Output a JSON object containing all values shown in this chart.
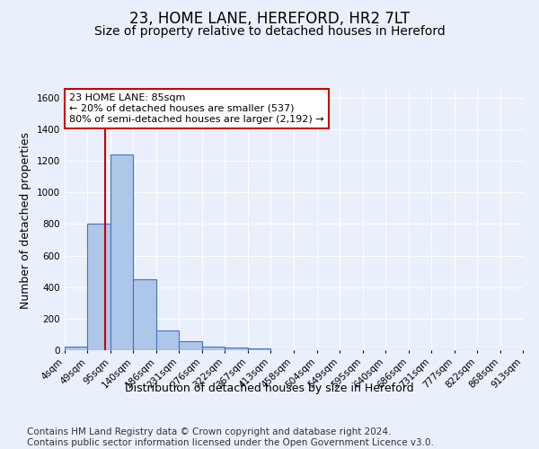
{
  "title_line1": "23, HOME LANE, HEREFORD, HR2 7LT",
  "title_line2": "Size of property relative to detached houses in Hereford",
  "xlabel": "Distribution of detached houses by size in Hereford",
  "ylabel": "Number of detached properties",
  "footer_line1": "Contains HM Land Registry data © Crown copyright and database right 2024.",
  "footer_line2": "Contains public sector information licensed under the Open Government Licence v3.0.",
  "bin_labels": [
    "4sqm",
    "49sqm",
    "95sqm",
    "140sqm",
    "186sqm",
    "231sqm",
    "276sqm",
    "322sqm",
    "367sqm",
    "413sqm",
    "458sqm",
    "504sqm",
    "549sqm",
    "595sqm",
    "640sqm",
    "686sqm",
    "731sqm",
    "777sqm",
    "822sqm",
    "868sqm",
    "913sqm"
  ],
  "bar_values": [
    25,
    800,
    1240,
    450,
    125,
    55,
    25,
    15,
    10,
    0,
    0,
    0,
    0,
    0,
    0,
    0,
    0,
    0,
    0,
    0
  ],
  "bar_color": "#aec6e8",
  "bar_edge_color": "#4472c4",
  "ylim": [
    0,
    1650
  ],
  "yticks": [
    0,
    200,
    400,
    600,
    800,
    1000,
    1200,
    1400,
    1600
  ],
  "property_line_x": 85,
  "property_line_color": "#cc0000",
  "annotation_text": "23 HOME LANE: 85sqm\n← 20% of detached houses are smaller (537)\n80% of semi-detached houses are larger (2,192) →",
  "annotation_box_color": "#cc0000",
  "annotation_text_color": "#000000",
  "background_color": "#eaf0fb",
  "grid_color": "#ffffff",
  "title_fontsize": 12,
  "subtitle_fontsize": 10,
  "axis_label_fontsize": 9,
  "tick_fontsize": 7.5,
  "footer_fontsize": 7.5,
  "bin_edges": [
    4,
    49,
    95,
    140,
    186,
    231,
    276,
    322,
    367,
    413,
    458,
    504,
    549,
    595,
    640,
    686,
    731,
    777,
    822,
    868,
    913
  ]
}
